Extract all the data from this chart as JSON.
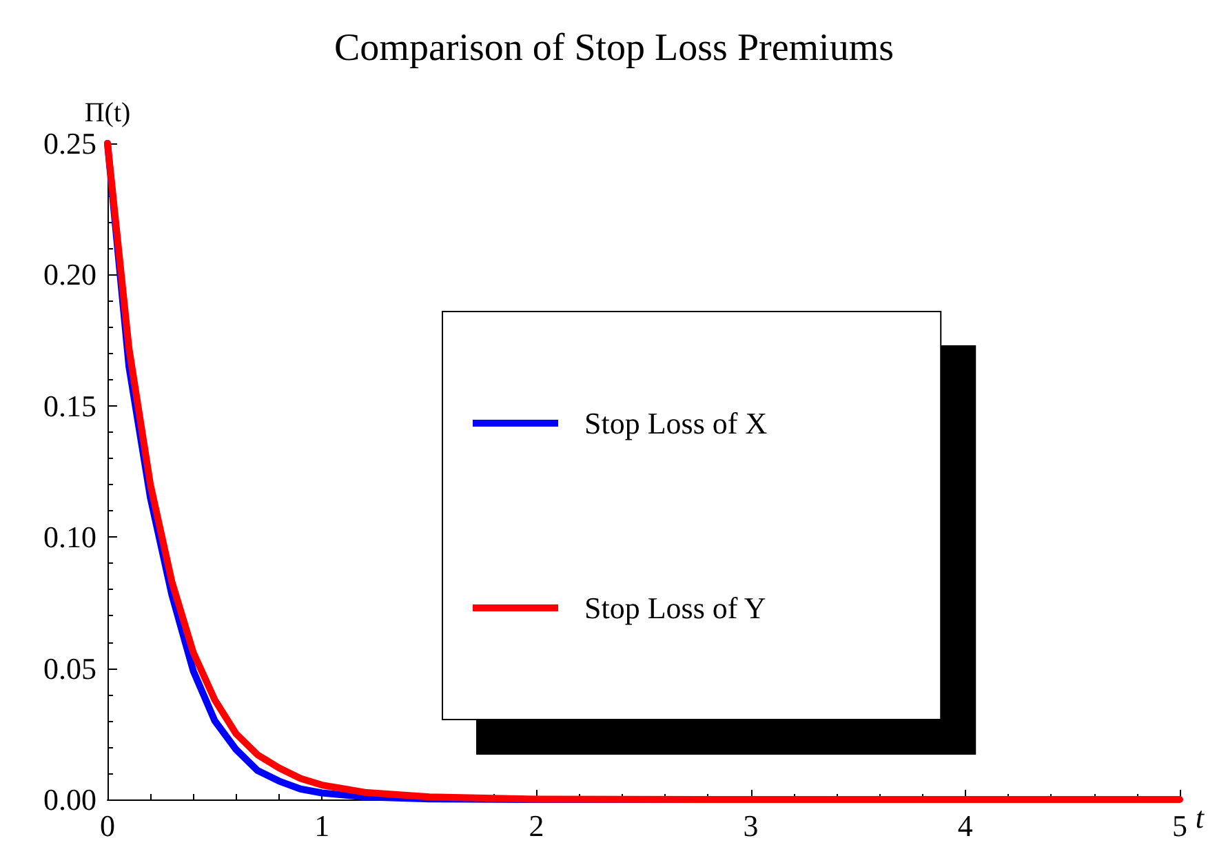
{
  "chart_data": {
    "type": "line",
    "title": "Comparison of Stop Loss Premiums",
    "xlabel": "t",
    "ylabel": "Π(t)",
    "xlim": [
      0,
      5
    ],
    "xticks": [
      0,
      1,
      2,
      3,
      4,
      5
    ],
    "ylim": [
      0,
      0.25
    ],
    "yticks": [
      {
        "value": 0,
        "label": "0.00"
      },
      {
        "value": 0.05,
        "label": "0.05"
      },
      {
        "value": 0.1,
        "label": "0.10"
      },
      {
        "value": 0.15,
        "label": "0.15"
      },
      {
        "value": 0.2,
        "label": "0.20"
      },
      {
        "value": 0.25,
        "label": "0.25"
      }
    ],
    "x": [
      0,
      0.1,
      0.2,
      0.3,
      0.4,
      0.5,
      0.6,
      0.7,
      0.8,
      0.9,
      1,
      1.2,
      1.5,
      2,
      3,
      4,
      5
    ],
    "series": [
      {
        "name": "Stop Loss of X",
        "color": "#0000ff",
        "values": [
          0.25,
          0.165,
          0.115,
          0.078,
          0.049,
          0.03,
          0.019,
          0.011,
          0.007,
          0.004,
          0.0025,
          0.001,
          0.0002,
          0,
          0,
          null,
          null
        ]
      },
      {
        "name": "Stop Loss of Y",
        "color": "#ff0000",
        "values": [
          0.25,
          0.172,
          0.12,
          0.083,
          0.056,
          0.038,
          0.025,
          0.017,
          0.012,
          0.008,
          0.0055,
          0.0027,
          0.001,
          0.0001,
          0,
          0,
          0
        ]
      }
    ],
    "legend": "right",
    "marker": "none",
    "line_style": "solid",
    "grid": false
  }
}
